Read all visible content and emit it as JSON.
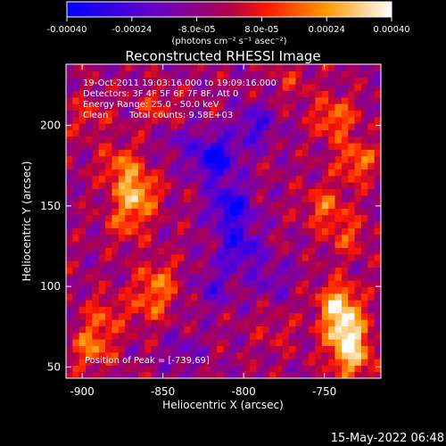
{
  "chart_data": {
    "type": "heatmap",
    "title": "Reconstructed RHESSI Image",
    "xlabel": "Heliocentric X (arcsec)",
    "ylabel": "Heliocentric Y (arcsec)",
    "xlim": [
      -910,
      -715
    ],
    "ylim": [
      43,
      238
    ],
    "x_ticks": [
      -900,
      -850,
      -800,
      -750
    ],
    "x_tick_labels": [
      "-900",
      "-850",
      "-800",
      "-750"
    ],
    "y_ticks": [
      50,
      100,
      150,
      200
    ],
    "y_tick_labels": [
      "50",
      "100",
      "150",
      "200"
    ],
    "colorbar": {
      "min": -0.0004,
      "max": 0.0004,
      "tick_values": [
        -0.0004,
        -0.00024,
        -8e-05,
        8e-05,
        0.00024,
        0.0004
      ],
      "tick_labels": [
        "-0.00040",
        "-0.00024",
        "-8.0e-05",
        "8.0e-05",
        "0.00024",
        "0.00040"
      ],
      "unit_label": "(photons cm⁻² s⁻¹ asec⁻²)",
      "colormap": [
        "#0000ff",
        "#7f00bf",
        "#ff0000",
        "#ff9900",
        "#ffffff"
      ]
    },
    "annotations": [
      "19-Oct-2011 19:03:16.000 to 19:09:16.000",
      "Detectors: 3F 4F 5F 6F 7F 8F, Att 0",
      "Energy Range: 25.0 - 50.0 keV",
      "Clean",
      "Total counts: 9.58E+03"
    ],
    "peak_label": "Position of Peak = [-739,69]",
    "peak": [
      -739,
      69
    ],
    "blobs": [
      {
        "x": -737,
        "y": 72,
        "value": 0.0004
      },
      {
        "x": -741,
        "y": 90,
        "value": 0.00034
      },
      {
        "x": -733,
        "y": 55,
        "value": 0.0003
      },
      {
        "x": -866,
        "y": 158,
        "value": 0.00032
      },
      {
        "x": -876,
        "y": 175,
        "value": 0.00022
      },
      {
        "x": -872,
        "y": 140,
        "value": 0.00018
      },
      {
        "x": -894,
        "y": 62,
        "value": 0.00024
      },
      {
        "x": -886,
        "y": 82,
        "value": 0.00016
      },
      {
        "x": -853,
        "y": 104,
        "value": 0.0002
      },
      {
        "x": -858,
        "y": 88,
        "value": 0.00016
      },
      {
        "x": -744,
        "y": 205,
        "value": 0.00024
      },
      {
        "x": -730,
        "y": 178,
        "value": 0.00024
      },
      {
        "x": -750,
        "y": 150,
        "value": 0.0002
      },
      {
        "x": -736,
        "y": 132,
        "value": 0.00016
      },
      {
        "x": -770,
        "y": 228,
        "value": 0.0001
      },
      {
        "x": -853,
        "y": 210,
        "value": 0.00014
      },
      {
        "x": -896,
        "y": 206,
        "value": 0.00012
      },
      {
        "x": -780,
        "y": 72,
        "value": 8e-05
      },
      {
        "x": -818,
        "y": 180,
        "value": -0.00036
      },
      {
        "x": -808,
        "y": 150,
        "value": -0.00032
      },
      {
        "x": -803,
        "y": 125,
        "value": -0.00026
      },
      {
        "x": -793,
        "y": 200,
        "value": -0.0002
      },
      {
        "x": -818,
        "y": 100,
        "value": -0.00014
      },
      {
        "x": -838,
        "y": 60,
        "value": -0.0001
      },
      {
        "x": -783,
        "y": 105,
        "value": -0.00012
      },
      {
        "x": -842,
        "y": 192,
        "value": -0.0001
      }
    ]
  },
  "footer": {
    "date": "15-May-2022 06:48"
  }
}
